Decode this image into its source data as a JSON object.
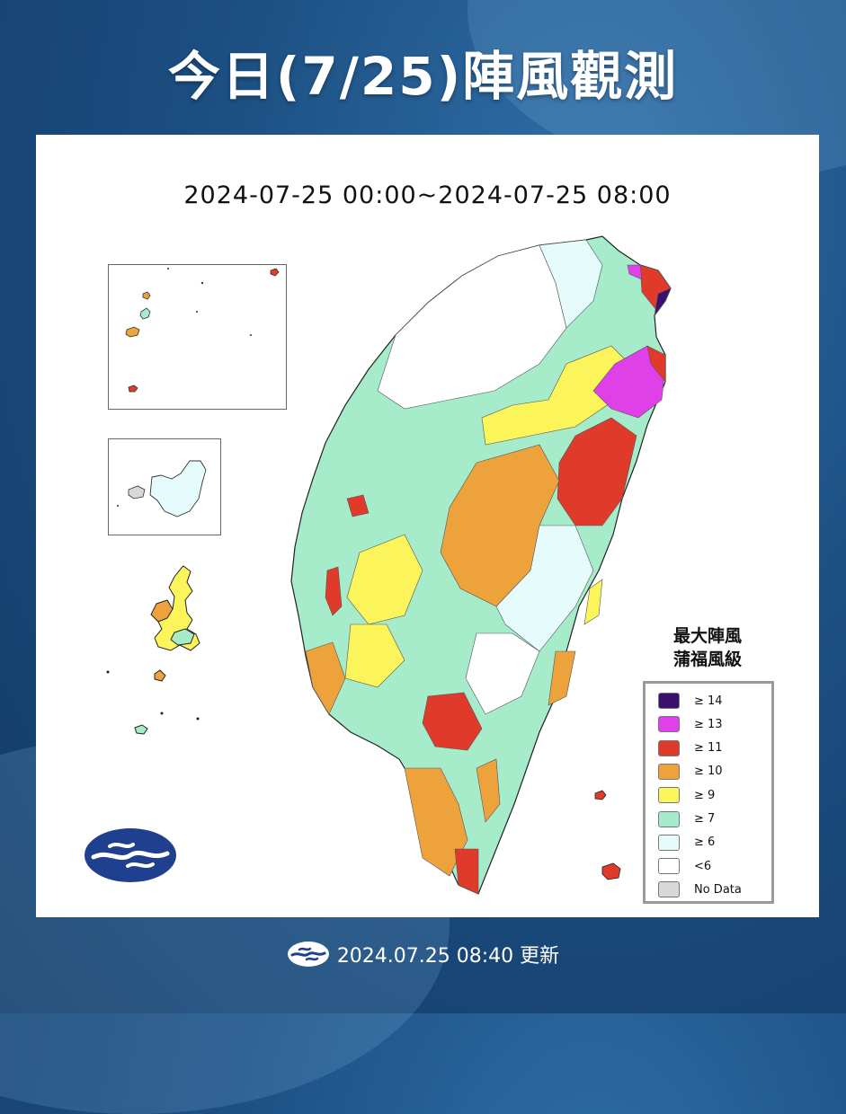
{
  "title": "今日(7/25)陣風觀測",
  "time_range": "2024-07-25 00:00~2024-07-25 08:00",
  "legend": {
    "title_line1": "最大陣風",
    "title_line2": "蒲福風級",
    "items": [
      {
        "label": "≥ 14",
        "color": "#3b0f6e"
      },
      {
        "label": "≥ 13",
        "color": "#e040e8"
      },
      {
        "label": "≥ 11",
        "color": "#e03a2a"
      },
      {
        "label": "≥ 10",
        "color": "#eea23c"
      },
      {
        "label": "≥ 9",
        "color": "#fbf45a"
      },
      {
        "label": "≥ 7",
        "color": "#a6eccb"
      },
      {
        "label": "≥ 6",
        "color": "#e6fbfb"
      },
      {
        "label": "<6",
        "color": "#ffffff"
      },
      {
        "label": "No Data",
        "color": "#d8d8d8"
      }
    ]
  },
  "footer": {
    "updated": "2024.07.25 08:40 更新"
  },
  "colors": {
    "background": "#1c4f82",
    "logo_blue": "#1f3f8f",
    "border_line": "#555555"
  },
  "icons": {
    "agency_logo": "cwa-logo-icon"
  }
}
